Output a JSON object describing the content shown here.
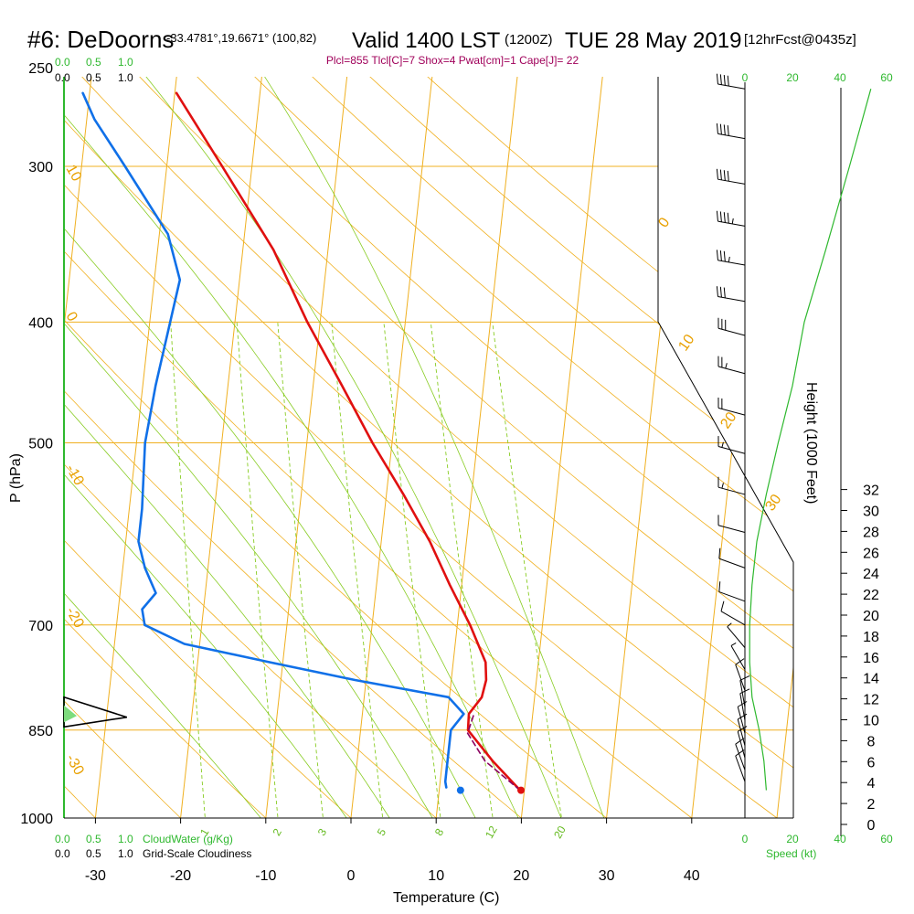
{
  "header": {
    "station": "#6: DeDoorns",
    "coords": "-33.4781°,19.6671° (100,82)",
    "valid": "Valid 1400 LST",
    "utc": "(1200Z)",
    "date": "TUE 28 May 2019",
    "forecast": "[12hrFcst@0435z]"
  },
  "indices": "Plcl=855 Tlcl[C]=7 Shox=4 Pwat[cm]=1 Cape[J]= 22",
  "axes": {
    "xlabel": "Temperature (C)",
    "ylabel": "P (hPa)",
    "height_label": "Height (1000 Feet)",
    "speed_label": "Speed (kt)",
    "cloudwater_label": "CloudWater (g/Kg)",
    "cloudiness_label": "Grid-Scale Cloudiness"
  },
  "scales": {
    "cloudwater_ticks": [
      "0.0",
      "0.5",
      "1.0"
    ],
    "cloudiness_ticks": [
      "0.0",
      "0.5",
      "1.0"
    ],
    "speed_ticks": [
      "0",
      "20",
      "40",
      "60"
    ]
  },
  "colors": {
    "temperature": "#e01010",
    "dewpoint": "#1070e8",
    "isotherm": "#f0b020",
    "dry_adiabat": "#f0b020",
    "moist_adiabat": "#88cc22",
    "mixing_ratio": "#88cc22",
    "speed": "#2eb82e",
    "parcel": "#8b0060"
  },
  "chart_data": {
    "type": "skew-t",
    "pressure_levels": [
      250,
      300,
      400,
      500,
      700,
      850,
      1000
    ],
    "pressure_tick_labels": [
      "250",
      "300",
      "400",
      "500",
      "700",
      "850",
      "1000"
    ],
    "temp_ticks": [
      -30,
      -20,
      -10,
      0,
      10,
      20,
      30,
      40
    ],
    "height_ticks_kft": [
      0,
      2,
      4,
      6,
      8,
      10,
      12,
      14,
      16,
      18,
      20,
      22,
      24,
      26,
      28,
      30,
      32
    ],
    "isotherm_labels": [
      "10",
      "0",
      "-10",
      "-20",
      "-30",
      "0",
      "10",
      "20",
      "30"
    ],
    "mixing_ratio_labels": [
      "1",
      "2",
      "3",
      "5",
      "8",
      "12",
      "20"
    ],
    "temperature": [
      {
        "p": 950,
        "t": 19.5
      },
      {
        "p": 900,
        "t": 15.9
      },
      {
        "p": 850,
        "t": 12.6
      },
      {
        "p": 825,
        "t": 12.5
      },
      {
        "p": 800,
        "t": 13.8
      },
      {
        "p": 775,
        "t": 14.1
      },
      {
        "p": 750,
        "t": 13.8
      },
      {
        "p": 700,
        "t": 11.5
      },
      {
        "p": 650,
        "t": 8.6
      },
      {
        "p": 600,
        "t": 5.7
      },
      {
        "p": 550,
        "t": 2.0
      },
      {
        "p": 500,
        "t": -2.3
      },
      {
        "p": 450,
        "t": -6.6
      },
      {
        "p": 400,
        "t": -11.5
      },
      {
        "p": 350,
        "t": -16.4
      },
      {
        "p": 300,
        "t": -23.5
      },
      {
        "p": 262,
        "t": -29.8
      }
    ],
    "dewpoint": [
      {
        "p": 945,
        "t": 10.8
      },
      {
        "p": 935,
        "t": 10.6
      },
      {
        "p": 910,
        "t": 10.6
      },
      {
        "p": 880,
        "t": 10.6
      },
      {
        "p": 850,
        "t": 10.6
      },
      {
        "p": 825,
        "t": 11.9
      },
      {
        "p": 800,
        "t": 9.9
      },
      {
        "p": 775,
        "t": -1.3
      },
      {
        "p": 750,
        "t": -11.5
      },
      {
        "p": 725,
        "t": -21.8
      },
      {
        "p": 700,
        "t": -26.7
      },
      {
        "p": 680,
        "t": -27.2
      },
      {
        "p": 660,
        "t": -25.8
      },
      {
        "p": 630,
        "t": -27.4
      },
      {
        "p": 600,
        "t": -28.5
      },
      {
        "p": 565,
        "t": -28.5
      },
      {
        "p": 500,
        "t": -29.0
      },
      {
        "p": 450,
        "t": -28.5
      },
      {
        "p": 400,
        "t": -27.6
      },
      {
        "p": 370,
        "t": -27.0
      },
      {
        "p": 340,
        "t": -29.0
      },
      {
        "p": 300,
        "t": -34.9
      },
      {
        "p": 275,
        "t": -39.1
      },
      {
        "p": 262,
        "t": -40.8
      }
    ],
    "parcel": [
      {
        "p": 950,
        "t": 19.5
      },
      {
        "p": 900,
        "t": 15.0
      },
      {
        "p": 855,
        "t": 12.6
      },
      {
        "p": 825,
        "t": 13.1
      }
    ],
    "surface_temperature": {
      "p": 950,
      "t": 19.6
    },
    "surface_dewpoint": {
      "p": 950,
      "t": 12.5
    },
    "wind_barbs": [
      {
        "p": 260,
        "dir": 280,
        "kt": 40
      },
      {
        "p": 285,
        "dir": 280,
        "kt": 40
      },
      {
        "p": 310,
        "dir": 280,
        "kt": 40
      },
      {
        "p": 335,
        "dir": 280,
        "kt": 45
      },
      {
        "p": 360,
        "dir": 280,
        "kt": 35
      },
      {
        "p": 385,
        "dir": 280,
        "kt": 30
      },
      {
        "p": 410,
        "dir": 285,
        "kt": 30
      },
      {
        "p": 440,
        "dir": 285,
        "kt": 25
      },
      {
        "p": 475,
        "dir": 285,
        "kt": 20
      },
      {
        "p": 510,
        "dir": 285,
        "kt": 15
      },
      {
        "p": 550,
        "dir": 285,
        "kt": 15
      },
      {
        "p": 590,
        "dir": 285,
        "kt": 10
      },
      {
        "p": 630,
        "dir": 290,
        "kt": 10
      },
      {
        "p": 670,
        "dir": 290,
        "kt": 10
      },
      {
        "p": 700,
        "dir": 300,
        "kt": 10
      },
      {
        "p": 730,
        "dir": 320,
        "kt": 5
      },
      {
        "p": 760,
        "dir": 330,
        "kt": 5
      },
      {
        "p": 790,
        "dir": 340,
        "kt": 10
      },
      {
        "p": 815,
        "dir": 350,
        "kt": 10
      },
      {
        "p": 835,
        "dir": 350,
        "kt": 10
      },
      {
        "p": 855,
        "dir": 345,
        "kt": 10
      },
      {
        "p": 875,
        "dir": 345,
        "kt": 10
      },
      {
        "p": 895,
        "dir": 345,
        "kt": 10
      },
      {
        "p": 915,
        "dir": 340,
        "kt": 10
      },
      {
        "p": 935,
        "dir": 340,
        "kt": 10
      }
    ],
    "wind_speed_profile": [
      {
        "p": 950,
        "kt": 9
      },
      {
        "p": 900,
        "kt": 8
      },
      {
        "p": 850,
        "kt": 6
      },
      {
        "p": 800,
        "kt": 3
      },
      {
        "p": 750,
        "kt": 2
      },
      {
        "p": 700,
        "kt": 2
      },
      {
        "p": 650,
        "kt": 3
      },
      {
        "p": 600,
        "kt": 5
      },
      {
        "p": 550,
        "kt": 9
      },
      {
        "p": 500,
        "kt": 14
      },
      {
        "p": 450,
        "kt": 20
      },
      {
        "p": 400,
        "kt": 25
      },
      {
        "p": 350,
        "kt": 34
      },
      {
        "p": 300,
        "kt": 44
      },
      {
        "p": 260,
        "kt": 53
      }
    ],
    "cloudwater_profile": [
      {
        "p": 800,
        "v": 0.0
      },
      {
        "p": 830,
        "v": 1.25
      },
      {
        "p": 845,
        "v": 0.0
      }
    ]
  }
}
